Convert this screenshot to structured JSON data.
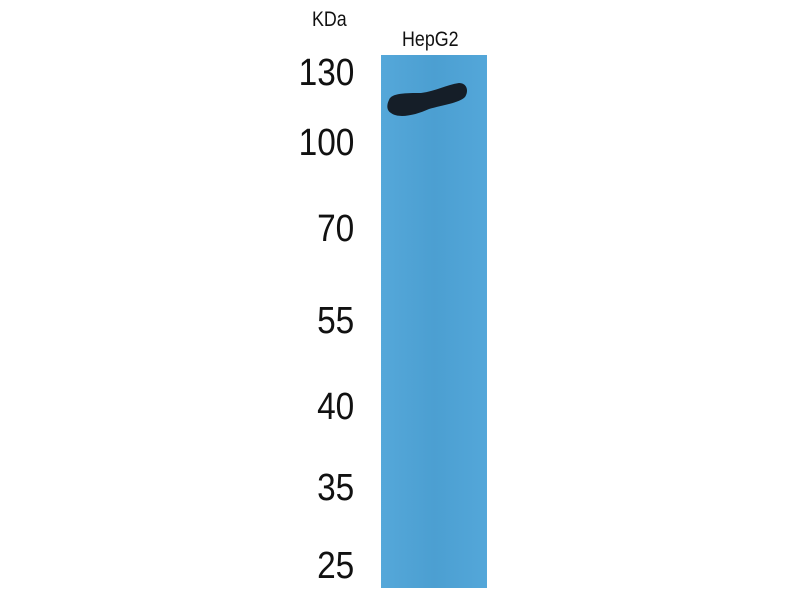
{
  "unit_label": "KDa",
  "lanes": [
    {
      "label": "HepG2"
    }
  ],
  "markers": [
    "130",
    "100",
    "70",
    "55",
    "40",
    "35",
    "25"
  ],
  "colors": {
    "membrane": "#4ea4d8",
    "band": "#141a22"
  }
}
